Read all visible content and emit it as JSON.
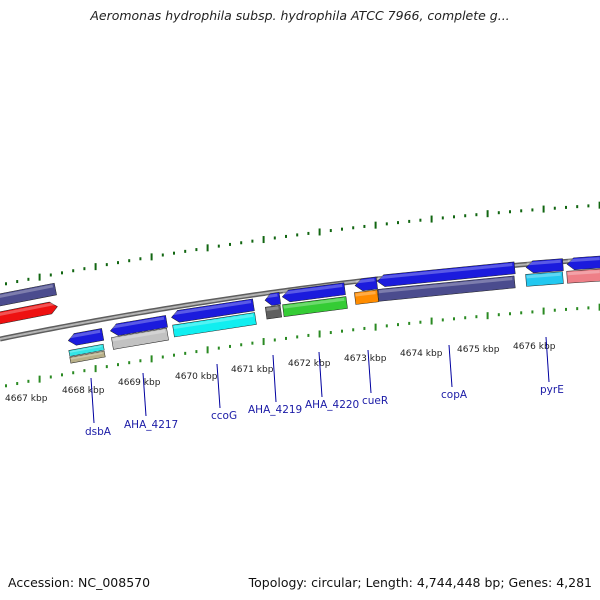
{
  "title": "Aeromonas hydrophila subsp. hydrophila ATCC 7966, complete g...",
  "accession": "Accession: NC_008570",
  "topology": "Topology: circular; Length: 4,744,448 bp; Genes: 4,281",
  "colors": {
    "forward_tick": "#116611",
    "reverse_tick": "#2a8a22",
    "label_text": "#1a1aa6",
    "axis_text": "#222222",
    "backbone": "#8a8a8a"
  },
  "ruler_labels": [
    "4667 kbp",
    "4668 kbp",
    "4669 kbp",
    "4670 kbp",
    "4671 kbp",
    "4672 kbp",
    "4673 kbp",
    "4674 kbp",
    "4675 kbp",
    "4676 kbp"
  ],
  "gene_labels": [
    "dsbA",
    "AHA_4217",
    "ccoG",
    "AHA_4219",
    "AHA_4220",
    "cueR",
    "copA",
    "pyrE"
  ],
  "features": [
    {
      "name": "dsbA",
      "color": "#1b1bdd",
      "strand": "reverse"
    },
    {
      "name": "AHA_4217",
      "color": "#1b1bdd",
      "strand": "reverse"
    },
    {
      "name": "ccoG",
      "color": "#1b1bdd",
      "strand": "reverse"
    },
    {
      "name": "AHA_4219",
      "color": "#1b1bdd",
      "strand": "reverse"
    },
    {
      "name": "AHA_4220",
      "color": "#1b1bdd",
      "strand": "reverse"
    },
    {
      "name": "cueR",
      "color": "#1b1bdd",
      "strand": "reverse"
    },
    {
      "name": "copA",
      "color": "#1b1bdd",
      "strand": "reverse"
    },
    {
      "name": "pyrE",
      "color": "#1b1bdd",
      "strand": "reverse"
    }
  ]
}
